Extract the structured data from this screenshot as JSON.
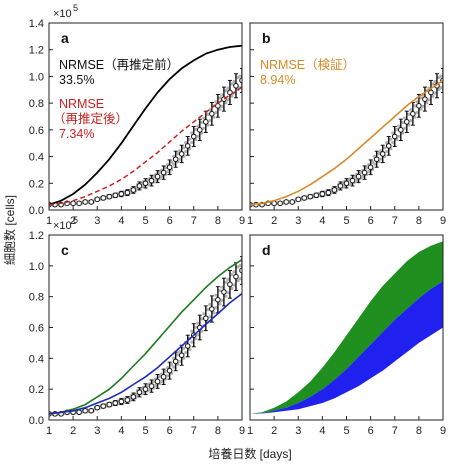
{
  "figure": {
    "ylabel": "細胞数 [cells]",
    "xlabel": "培養日数 [days]",
    "scale_label": "×10",
    "scale_exp": "5"
  },
  "colors": {
    "measured": "#111111",
    "replicate": "#b0b0b0",
    "black_curve": "#000000",
    "red_curve": "#cc2222",
    "orange_curve": "#d98a2a",
    "green_curve": "#1f7a1f",
    "blue_curve": "#1f2bb8",
    "green_band": "#138a13",
    "blue_band": "#1515ee"
  },
  "chart_data": [
    {
      "panel": "a",
      "type": "line",
      "xlim": [
        1,
        9
      ],
      "ylim": [
        0,
        1.4
      ],
      "xticks": [
        "1",
        "2",
        "3",
        "4",
        "5",
        "6",
        "7",
        "8",
        "9"
      ],
      "yticks": [
        "0.0",
        "0.2",
        "0.4",
        "0.6",
        "0.8",
        "1.0",
        "1.2",
        "1.4"
      ],
      "show_scale": true,
      "annotations": [
        {
          "lines": [
            "NRMSE（再推定前）",
            "33.5%"
          ],
          "color": "#111111"
        },
        {
          "lines": [
            "NRMSE",
            "（再推定後）",
            "7.34%"
          ],
          "color": "#cc2222"
        }
      ],
      "series": [
        {
          "style": "black_solid",
          "x": [
            1,
            1.5,
            2,
            2.5,
            3,
            3.5,
            4,
            4.5,
            5,
            5.5,
            6,
            6.5,
            7,
            7.5,
            8,
            8.5,
            9
          ],
          "y": [
            0.04,
            0.07,
            0.12,
            0.19,
            0.28,
            0.38,
            0.5,
            0.63,
            0.76,
            0.88,
            0.98,
            1.06,
            1.12,
            1.17,
            1.2,
            1.22,
            1.23
          ]
        },
        {
          "style": "red_dashed",
          "x": [
            1,
            1.5,
            2,
            2.5,
            3,
            3.5,
            4,
            4.5,
            5,
            5.5,
            6,
            6.5,
            7,
            7.5,
            8,
            8.5,
            9
          ],
          "y": [
            0.04,
            0.05,
            0.07,
            0.1,
            0.14,
            0.18,
            0.23,
            0.29,
            0.36,
            0.43,
            0.51,
            0.59,
            0.66,
            0.73,
            0.8,
            0.86,
            0.92
          ]
        }
      ]
    },
    {
      "panel": "b",
      "type": "line",
      "xlim": [
        1,
        9
      ],
      "ylim": [
        0,
        1.4
      ],
      "xticks": [
        "1",
        "2",
        "3",
        "4",
        "5",
        "6",
        "7",
        "8",
        "9"
      ],
      "yticks": [],
      "show_scale": false,
      "annotations": [
        {
          "lines": [
            "NRMSE（検証）",
            "8.94%"
          ],
          "color": "#d98a2a"
        }
      ],
      "series": [
        {
          "style": "orange_solid",
          "x": [
            1,
            1.5,
            2,
            2.5,
            3,
            3.5,
            4,
            4.5,
            5,
            5.5,
            6,
            6.5,
            7,
            7.5,
            8,
            8.5,
            9
          ],
          "y": [
            0.04,
            0.05,
            0.07,
            0.1,
            0.14,
            0.19,
            0.25,
            0.31,
            0.38,
            0.46,
            0.54,
            0.62,
            0.7,
            0.78,
            0.85,
            0.91,
            0.97
          ]
        }
      ]
    },
    {
      "panel": "c",
      "type": "line",
      "xlim": [
        1,
        9
      ],
      "ylim": [
        0,
        1.2
      ],
      "xticks": [
        "1",
        "2",
        "3",
        "4",
        "5",
        "6",
        "7",
        "8",
        "9"
      ],
      "yticks": [
        "0.0",
        "0.2",
        "0.4",
        "0.6",
        "0.8",
        "1.0",
        "1.2"
      ],
      "show_scale": true,
      "annotations": [],
      "series": [
        {
          "style": "green_solid",
          "x": [
            1,
            1.5,
            2,
            2.5,
            3,
            3.5,
            4,
            4.5,
            5,
            5.5,
            6,
            6.5,
            7,
            7.5,
            8,
            8.5,
            9
          ],
          "y": [
            0.04,
            0.05,
            0.07,
            0.1,
            0.15,
            0.2,
            0.27,
            0.35,
            0.43,
            0.52,
            0.61,
            0.7,
            0.78,
            0.86,
            0.93,
            0.99,
            1.04
          ]
        },
        {
          "style": "blue_solid",
          "x": [
            1,
            1.5,
            2,
            2.5,
            3,
            3.5,
            4,
            4.5,
            5,
            5.5,
            6,
            6.5,
            7,
            7.5,
            8,
            8.5,
            9
          ],
          "y": [
            0.04,
            0.05,
            0.06,
            0.08,
            0.11,
            0.14,
            0.18,
            0.23,
            0.28,
            0.34,
            0.41,
            0.48,
            0.55,
            0.62,
            0.69,
            0.76,
            0.82
          ]
        }
      ]
    },
    {
      "panel": "d",
      "type": "area",
      "xlim": [
        1,
        9
      ],
      "ylim": [
        0,
        1.2
      ],
      "xticks": [
        "1",
        "2",
        "3",
        "4",
        "5",
        "6",
        "7",
        "8",
        "9"
      ],
      "yticks": [],
      "show_scale": false,
      "annotations": [],
      "bands": [
        {
          "style": "green_band",
          "x": [
            1,
            1.5,
            2,
            2.5,
            3,
            3.5,
            4,
            4.5,
            5,
            5.5,
            6,
            6.5,
            7,
            7.5,
            8,
            8.5,
            9
          ],
          "upper": [
            0.04,
            0.05,
            0.08,
            0.12,
            0.18,
            0.25,
            0.34,
            0.44,
            0.55,
            0.66,
            0.77,
            0.87,
            0.95,
            1.03,
            1.09,
            1.13,
            1.16
          ],
          "lower": [
            0.04,
            0.045,
            0.06,
            0.08,
            0.11,
            0.15,
            0.2,
            0.26,
            0.33,
            0.41,
            0.49,
            0.57,
            0.65,
            0.72,
            0.79,
            0.85,
            0.9
          ]
        },
        {
          "style": "blue_band",
          "x": [
            1,
            1.5,
            2,
            2.5,
            3,
            3.5,
            4,
            4.5,
            5,
            5.5,
            6,
            6.5,
            7,
            7.5,
            8,
            8.5,
            9
          ],
          "upper": [
            0.04,
            0.045,
            0.06,
            0.08,
            0.11,
            0.15,
            0.2,
            0.26,
            0.33,
            0.41,
            0.49,
            0.57,
            0.65,
            0.72,
            0.79,
            0.85,
            0.9
          ],
          "lower": [
            0.04,
            0.042,
            0.05,
            0.06,
            0.07,
            0.09,
            0.11,
            0.14,
            0.18,
            0.22,
            0.27,
            0.32,
            0.38,
            0.44,
            0.5,
            0.55,
            0.6
          ]
        }
      ]
    }
  ],
  "measured": {
    "x": [
      1,
      1.25,
      1.5,
      1.75,
      2,
      2.25,
      2.5,
      2.75,
      3,
      3.25,
      3.5,
      3.75,
      4,
      4.25,
      4.5,
      4.75,
      5,
      5.25,
      5.5,
      5.75,
      6,
      6.25,
      6.5,
      6.75,
      7,
      7.25,
      7.5,
      7.75,
      8,
      8.25,
      8.5,
      8.75,
      9
    ],
    "y": [
      0.04,
      0.04,
      0.04,
      0.05,
      0.05,
      0.05,
      0.06,
      0.06,
      0.08,
      0.09,
      0.1,
      0.11,
      0.12,
      0.13,
      0.15,
      0.18,
      0.2,
      0.22,
      0.25,
      0.28,
      0.32,
      0.38,
      0.42,
      0.48,
      0.55,
      0.6,
      0.66,
      0.72,
      0.78,
      0.83,
      0.88,
      0.93,
      0.97
    ],
    "err": [
      0.005,
      0.005,
      0.005,
      0.006,
      0.006,
      0.007,
      0.008,
      0.008,
      0.01,
      0.012,
      0.014,
      0.016,
      0.02,
      0.022,
      0.025,
      0.03,
      0.035,
      0.04,
      0.045,
      0.05,
      0.055,
      0.06,
      0.065,
      0.07,
      0.075,
      0.08,
      0.08,
      0.085,
      0.085,
      0.09,
      0.09,
      0.09,
      0.09
    ],
    "panels_with_points": [
      "a",
      "b",
      "c"
    ]
  }
}
